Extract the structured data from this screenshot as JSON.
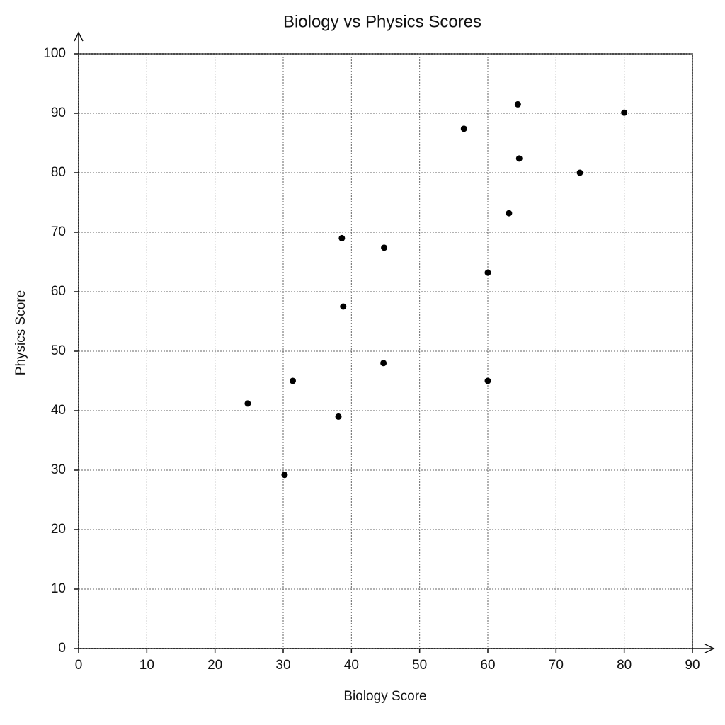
{
  "chart_data": {
    "type": "scatter",
    "title": "Biology vs Physics Scores",
    "x_label": "Biology Score",
    "y_label": "Physics Score",
    "x": [
      24.8,
      31.4,
      30.2,
      38.1,
      38.6,
      38.8,
      44.7,
      44.8,
      56.5,
      60.0,
      60.0,
      63.1,
      64.4,
      64.6,
      73.5,
      80.0
    ],
    "values": [
      41.2,
      45.0,
      29.2,
      39.0,
      69.0,
      57.5,
      48.0,
      67.4,
      87.4,
      63.2,
      45.0,
      73.2,
      91.5,
      82.4,
      80.0,
      90.1
    ],
    "color": "#000000",
    "xlim": [
      0,
      90
    ],
    "xticks": [
      0,
      10,
      20,
      30,
      40,
      50,
      60,
      70,
      80,
      90
    ],
    "ylim": [
      0,
      100
    ],
    "yticks": [
      0,
      10,
      20,
      30,
      40,
      50,
      60,
      70,
      80,
      90,
      100
    ],
    "grid": true
  }
}
